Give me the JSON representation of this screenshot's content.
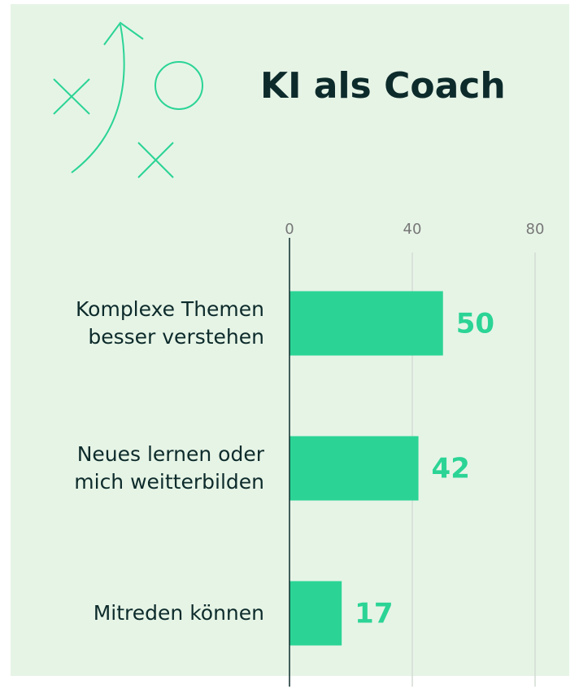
{
  "chart_data": {
    "type": "bar",
    "orientation": "horizontal",
    "title": "KI als Coach",
    "categories": [
      "Komplexe Themen besser verstehen",
      "Neues lernen oder mich weitterbilden",
      "Mitreden können"
    ],
    "values": [
      50,
      42,
      17
    ],
    "color": "#2bd495",
    "xlim": [
      0,
      80
    ],
    "xticks": [
      0,
      40,
      80
    ],
    "grid": true
  }
}
